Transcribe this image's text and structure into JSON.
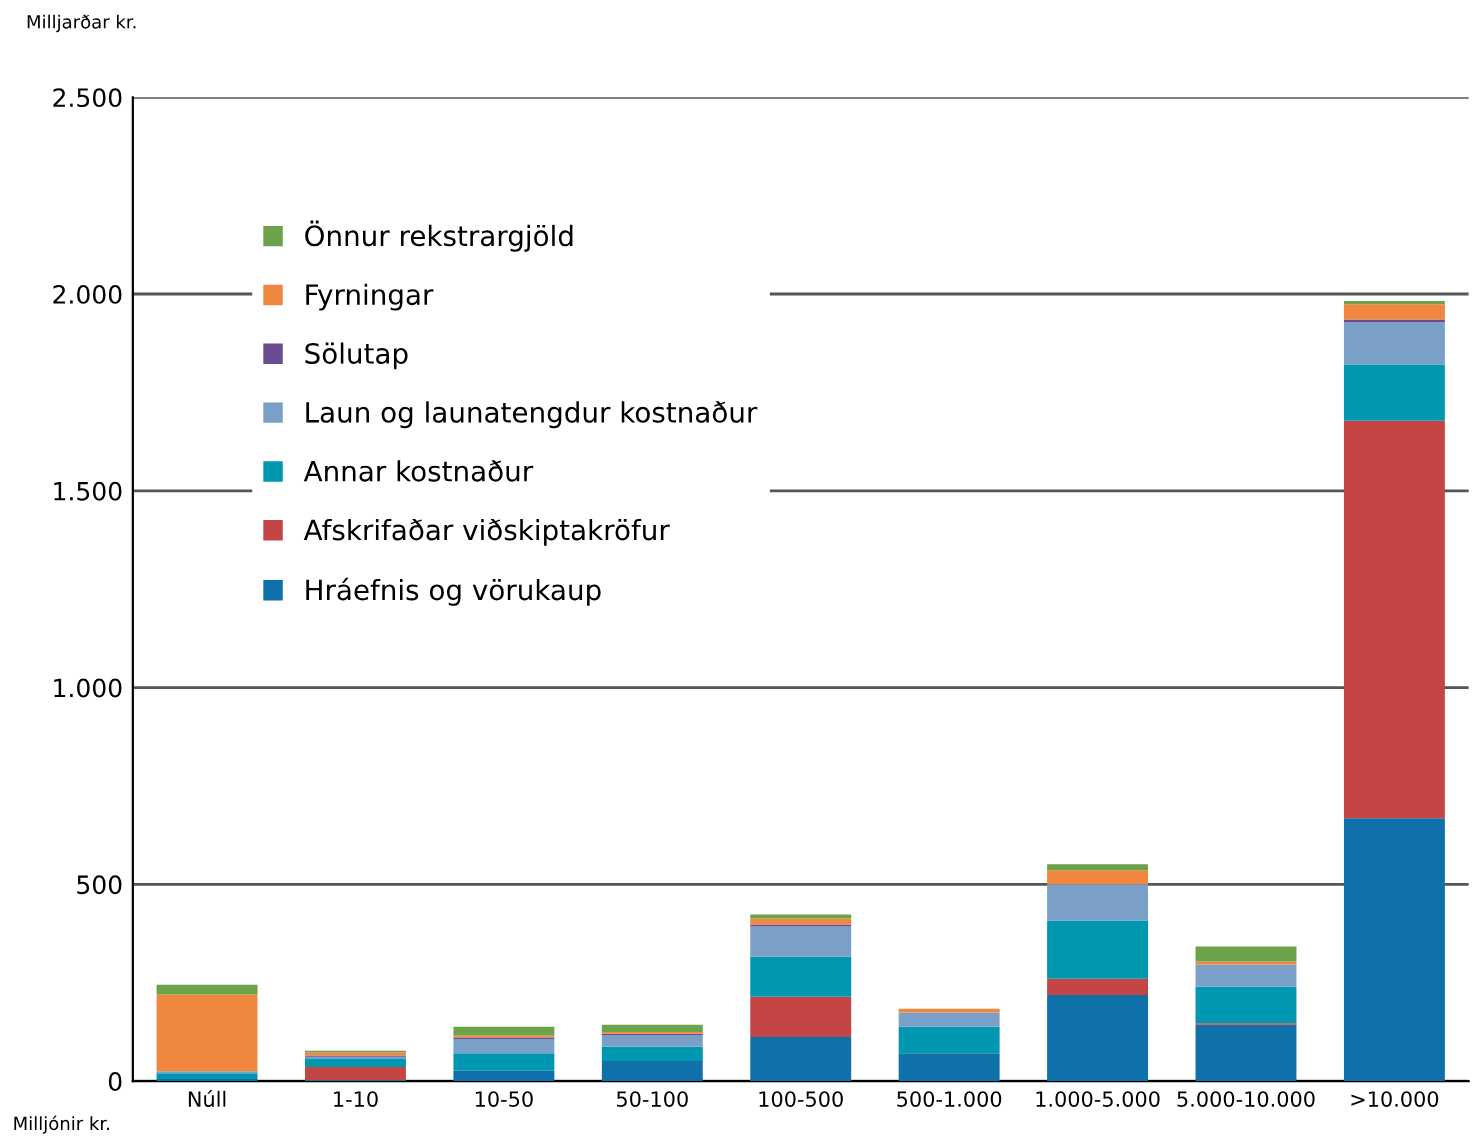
{
  "chart_data": {
    "type": "bar",
    "stacked": true,
    "xlabel": "Milljónir kr.",
    "ylabel": "Milljarðar kr.",
    "categories": [
      "Núll",
      "1-10",
      "10-50",
      "50-100",
      "100-500",
      "500-1.000",
      "1.000-5.000",
      "5.000-10.000",
      ">10.000"
    ],
    "series": [
      {
        "name": "Hráefnis og vörukaup",
        "color": "#1070aa",
        "values": [
          5,
          3,
          26,
          51,
          112,
          71,
          219,
          143,
          668
        ]
      },
      {
        "name": "Afskrifaðar viðskiptakröfur",
        "color": "#c44644",
        "values": [
          0,
          33,
          0,
          0,
          102,
          0,
          41,
          4,
          1010
        ]
      },
      {
        "name": "Annar kostnaður",
        "color": "#0098b0",
        "values": [
          15,
          20,
          45,
          36,
          102,
          67,
          148,
          93,
          143
        ]
      },
      {
        "name": "Laun og launatengdur kostnaður",
        "color": "#7aa0c8",
        "values": [
          5,
          6,
          36,
          30,
          77,
          36,
          92,
          56,
          107
        ]
      },
      {
        "name": "Sölutap",
        "color": "#6a4c93",
        "values": [
          0,
          3,
          4,
          3,
          5,
          0,
          0,
          0,
          7
        ]
      },
      {
        "name": "Fyrningar",
        "color": "#f0873e",
        "values": [
          195,
          8,
          5,
          5,
          15,
          10,
          36,
          8,
          39
        ]
      },
      {
        "name": "Önnur rekstrargjöld",
        "color": "#6ba24a",
        "values": [
          25,
          4,
          22,
          18,
          10,
          0,
          15,
          38,
          8
        ]
      }
    ],
    "ylim": [
      0,
      2500
    ],
    "yticks": [
      0,
      {
        "value": 500,
        "label": "500"
      },
      {
        "value": 1000,
        "label": "1.000"
      },
      {
        "value": 1500,
        "label": "1.500"
      },
      {
        "value": 2000,
        "label": "2.000"
      },
      {
        "value": 2500,
        "label": "2.500"
      }
    ],
    "grid": "y",
    "legend": "top left"
  }
}
